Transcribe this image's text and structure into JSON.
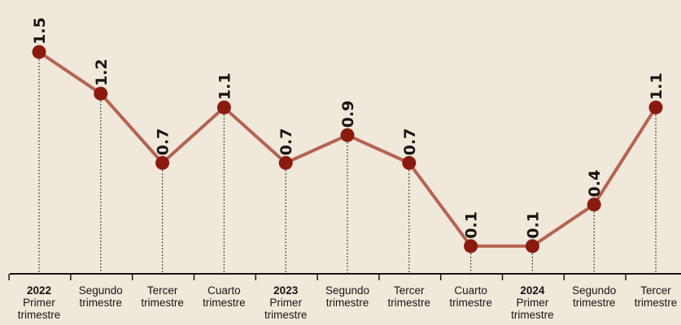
{
  "chart_data": {
    "type": "line",
    "categories": [
      [
        "2022",
        "Primer",
        "trimestre"
      ],
      [
        "Segundo",
        "trimestre"
      ],
      [
        "Tercer",
        "trimestre"
      ],
      [
        "Cuarto",
        "trimestre"
      ],
      [
        "2023",
        "Primer",
        "trimestre"
      ],
      [
        "Segundo",
        "trimestre"
      ],
      [
        "Tercer",
        "trimestre"
      ],
      [
        "Cuarto",
        "trimestre"
      ],
      [
        "2024",
        "Primer",
        "trimestre"
      ],
      [
        "Segundo",
        "trimestre"
      ],
      [
        "Tercer",
        "trimestre"
      ]
    ],
    "values": [
      1.5,
      1.2,
      0.7,
      1.1,
      0.7,
      0.9,
      0.7,
      0.1,
      0.1,
      0.4,
      1.1
    ],
    "value_labels": [
      "1.5",
      "1.2",
      "0.7",
      "1.1",
      "0.7",
      "0.9",
      "0.7",
      "0.1",
      "0.1",
      "0.4",
      "1.1"
    ],
    "ylim": [
      0,
      1.5
    ],
    "title": "",
    "xlabel": "",
    "ylabel": "",
    "grid": false,
    "colors": {
      "line": "#b5644f",
      "marker": "#8b1a0e",
      "text": "#1a1411",
      "axis": "#1a1411"
    }
  }
}
